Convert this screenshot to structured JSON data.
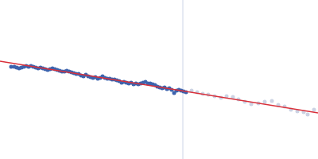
{
  "chart_data": {
    "type": "scatter",
    "tick_labels": false,
    "grid": false,
    "xlim": [
      0,
      400
    ],
    "ylim": [
      0,
      200
    ],
    "cutoff": 230,
    "cutoff_color": "#cdd5e6",
    "series": [
      {
        "type": "scatter",
        "marker": "circle",
        "color": "#3d63ad",
        "x": [
          14,
          18,
          21,
          24,
          27,
          30,
          33,
          36,
          39,
          42,
          45,
          48,
          51,
          54,
          57,
          60,
          63,
          66,
          69,
          72,
          75,
          78,
          81,
          84,
          87,
          90,
          93,
          96,
          99,
          102,
          105,
          108,
          111,
          114,
          117,
          120,
          123,
          126,
          129,
          132,
          135,
          138,
          141,
          144,
          147,
          150,
          153,
          156,
          159,
          162,
          165,
          168,
          171,
          174,
          177,
          180,
          183,
          186,
          189,
          192,
          195,
          198,
          201,
          204,
          207,
          210,
          213,
          216,
          219,
          222,
          225,
          228,
          231,
          234
        ],
        "values": [
          116,
          116,
          115,
          114,
          115,
          116,
          117,
          116,
          117,
          116,
          115,
          114,
          115,
          114,
          113,
          112,
          113,
          114,
          113,
          112,
          111,
          110,
          110,
          111,
          110,
          109,
          108,
          107,
          107,
          105,
          104,
          106,
          104,
          103,
          102,
          103,
          101,
          102,
          104,
          102,
          101,
          101,
          100,
          100,
          99,
          98,
          96,
          97,
          96,
          95,
          96,
          94,
          95,
          94,
          95,
          96,
          97,
          95,
          95,
          94,
          93,
          91,
          90,
          89,
          90,
          88,
          89,
          87,
          83,
          86,
          87,
          86,
          85,
          84
        ]
      },
      {
        "type": "scatter",
        "marker": "circle",
        "color": "#ccd3e4",
        "x": [
          241,
          248,
          255,
          262,
          270,
          278,
          285,
          293,
          300,
          308,
          316,
          325,
          333,
          342,
          350,
          358,
          366,
          374,
          382,
          387,
          395
        ],
        "values": [
          86,
          84,
          82,
          81,
          79,
          77,
          79,
          78,
          75,
          72,
          69,
          70,
          72,
          73,
          68,
          66,
          62,
          60,
          59,
          56,
          62
        ]
      },
      {
        "type": "line",
        "line_style": "solid",
        "color": "#d9303a",
        "x": [
          0,
          400
        ],
        "values": [
          123,
          58
        ]
      }
    ]
  }
}
